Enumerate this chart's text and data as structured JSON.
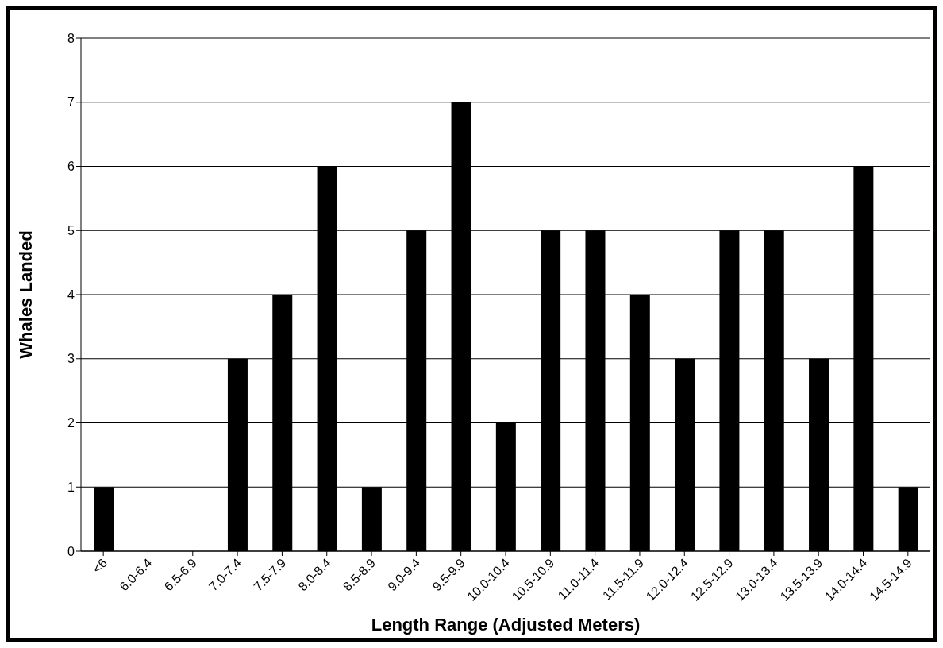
{
  "chart_data": {
    "type": "bar",
    "xlabel": "Length Range (Adjusted Meters)",
    "ylabel": "Whales Landed",
    "categories": [
      "<6",
      "6.0-6.4",
      "6.5-6.9",
      "7.0-7.4",
      "7.5-7.9",
      "8.0-8.4",
      "8.5-8.9",
      "9.0-9.4",
      "9.5-9.9",
      "10.0-10.4",
      "10.5-10.9",
      "11.0-11.4",
      "11.5-11.9",
      "12.0-12.4",
      "12.5-12.9",
      "13.0-13.4",
      "13.5-13.9",
      "14.0-14.4",
      "14.5-14.9"
    ],
    "values": [
      1,
      0,
      0,
      3,
      4,
      6,
      1,
      5,
      7,
      2,
      5,
      5,
      4,
      3,
      5,
      5,
      3,
      6,
      1
    ],
    "color": "#000000",
    "ylim": [
      0,
      8
    ],
    "yticks": [
      0,
      1,
      2,
      3,
      4,
      5,
      6,
      7,
      8
    ],
    "grid": "y"
  }
}
